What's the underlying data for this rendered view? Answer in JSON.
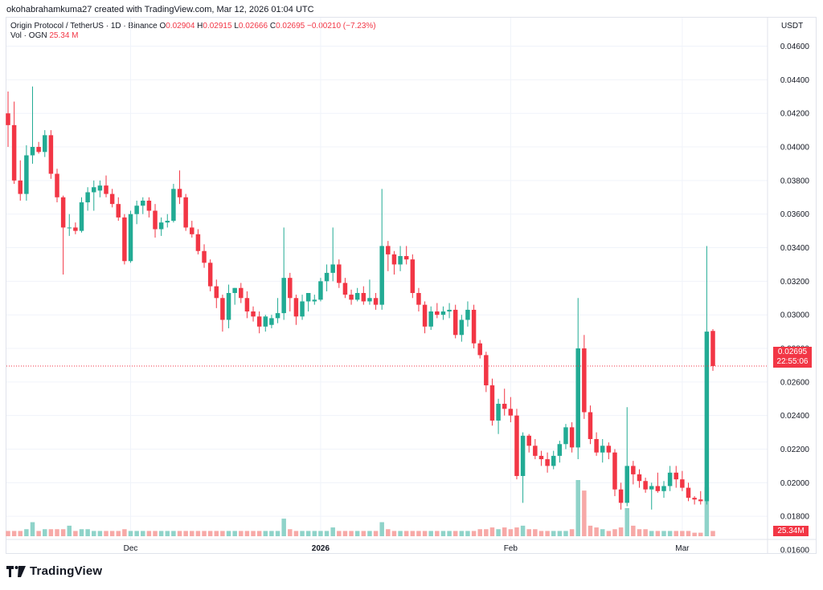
{
  "header": {
    "attribution": "okohabrahamkuma27 created with TradingView.com, Mar 12, 2026 01:04 UTC"
  },
  "legend": {
    "symbol": "Origin Protocol / TetherUS · 1D · Binance",
    "o_label": "O",
    "o_value": "0.02904",
    "h_label": "H",
    "h_value": "0.02915",
    "l_label": "L",
    "l_value": "0.02666",
    "c_label": "C",
    "c_value": "0.02695",
    "change": "−0.00210 (−7.23%)",
    "vol_label": "Vol · OGN",
    "vol_value": "25.34 M"
  },
  "axis": {
    "unit": "USDT",
    "y_ticks": [
      "0.04600",
      "0.04400",
      "0.04200",
      "0.04000",
      "0.03800",
      "0.03600",
      "0.03400",
      "0.03200",
      "0.03000",
      "0.02800",
      "0.02600",
      "0.02400",
      "0.02200",
      "0.02000",
      "0.01800",
      "0.01600"
    ],
    "x_ticks": [
      "Dec",
      "2026",
      "Feb",
      "Mar"
    ]
  },
  "last_price": {
    "price": "0.02695",
    "countdown": "22:55:06",
    "volume": "25.34M"
  },
  "brand": {
    "name": "TradingView"
  },
  "colors": {
    "up": "#22ab94",
    "down": "#f23645",
    "up_vol": "#8fd3c9",
    "down_vol": "#f7a9a7",
    "grid": "#f0f3fa"
  },
  "chart_data": {
    "type": "candlestick",
    "title": "Origin Protocol / TetherUS · 1D · Binance",
    "ylabel": "USDT",
    "ylim": [
      0.016,
      0.0466
    ],
    "grid": true,
    "x_ticks": [
      {
        "label": "Dec",
        "index": 20
      },
      {
        "label": "2026",
        "index": 51
      },
      {
        "label": "Feb",
        "index": 82
      },
      {
        "label": "Mar",
        "index": 110
      }
    ],
    "candles": [
      {
        "o": 0.042,
        "h": 0.0433,
        "l": 0.04,
        "c": 0.0413,
        "v": 3
      },
      {
        "o": 0.0413,
        "h": 0.0427,
        "l": 0.0378,
        "c": 0.038,
        "v": 3
      },
      {
        "o": 0.038,
        "h": 0.0392,
        "l": 0.0368,
        "c": 0.0372,
        "v": 3
      },
      {
        "o": 0.0372,
        "h": 0.0401,
        "l": 0.0368,
        "c": 0.0395,
        "v": 4
      },
      {
        "o": 0.0395,
        "h": 0.0436,
        "l": 0.039,
        "c": 0.04,
        "v": 8
      },
      {
        "o": 0.04,
        "h": 0.0403,
        "l": 0.0396,
        "c": 0.0397,
        "v": 3
      },
      {
        "o": 0.0397,
        "h": 0.041,
        "l": 0.0394,
        "c": 0.0407,
        "v": 4
      },
      {
        "o": 0.0407,
        "h": 0.041,
        "l": 0.0381,
        "c": 0.0384,
        "v": 4
      },
      {
        "o": 0.0384,
        "h": 0.0387,
        "l": 0.0367,
        "c": 0.037,
        "v": 4
      },
      {
        "o": 0.037,
        "h": 0.0371,
        "l": 0.0324,
        "c": 0.0352,
        "v": 4
      },
      {
        "o": 0.0352,
        "h": 0.036,
        "l": 0.0347,
        "c": 0.0352,
        "v": 6
      },
      {
        "o": 0.0352,
        "h": 0.0355,
        "l": 0.0348,
        "c": 0.035,
        "v": 3
      },
      {
        "o": 0.035,
        "h": 0.037,
        "l": 0.0349,
        "c": 0.0367,
        "v": 4
      },
      {
        "o": 0.0367,
        "h": 0.0376,
        "l": 0.0362,
        "c": 0.0373,
        "v": 4
      },
      {
        "o": 0.0373,
        "h": 0.038,
        "l": 0.0362,
        "c": 0.0376,
        "v": 3
      },
      {
        "o": 0.0374,
        "h": 0.038,
        "l": 0.037,
        "c": 0.0377,
        "v": 3
      },
      {
        "o": 0.0377,
        "h": 0.0383,
        "l": 0.037,
        "c": 0.0372,
        "v": 3
      },
      {
        "o": 0.0372,
        "h": 0.0375,
        "l": 0.0364,
        "c": 0.0366,
        "v": 3
      },
      {
        "o": 0.0366,
        "h": 0.037,
        "l": 0.0356,
        "c": 0.0358,
        "v": 3
      },
      {
        "o": 0.0358,
        "h": 0.036,
        "l": 0.033,
        "c": 0.0332,
        "v": 4
      },
      {
        "o": 0.0332,
        "h": 0.0362,
        "l": 0.0331,
        "c": 0.036,
        "v": 3
      },
      {
        "o": 0.036,
        "h": 0.0368,
        "l": 0.0354,
        "c": 0.0365,
        "v": 3
      },
      {
        "o": 0.0365,
        "h": 0.037,
        "l": 0.036,
        "c": 0.0368,
        "v": 3
      },
      {
        "o": 0.0368,
        "h": 0.037,
        "l": 0.0358,
        "c": 0.0362,
        "v": 3
      },
      {
        "o": 0.0362,
        "h": 0.0366,
        "l": 0.0346,
        "c": 0.0351,
        "v": 3
      },
      {
        "o": 0.0351,
        "h": 0.0358,
        "l": 0.0347,
        "c": 0.0355,
        "v": 3
      },
      {
        "o": 0.0355,
        "h": 0.036,
        "l": 0.0352,
        "c": 0.0356,
        "v": 3
      },
      {
        "o": 0.0356,
        "h": 0.0378,
        "l": 0.0355,
        "c": 0.0375,
        "v": 3
      },
      {
        "o": 0.0375,
        "h": 0.0386,
        "l": 0.0366,
        "c": 0.037,
        "v": 3
      },
      {
        "o": 0.037,
        "h": 0.0372,
        "l": 0.035,
        "c": 0.0352,
        "v": 3
      },
      {
        "o": 0.0352,
        "h": 0.0356,
        "l": 0.0346,
        "c": 0.0348,
        "v": 3
      },
      {
        "o": 0.0348,
        "h": 0.0351,
        "l": 0.0336,
        "c": 0.0338,
        "v": 3
      },
      {
        "o": 0.0338,
        "h": 0.0342,
        "l": 0.0328,
        "c": 0.0331,
        "v": 3
      },
      {
        "o": 0.0331,
        "h": 0.0333,
        "l": 0.0314,
        "c": 0.0317,
        "v": 3
      },
      {
        "o": 0.0317,
        "h": 0.0321,
        "l": 0.0304,
        "c": 0.031,
        "v": 3
      },
      {
        "o": 0.031,
        "h": 0.0312,
        "l": 0.029,
        "c": 0.0297,
        "v": 3
      },
      {
        "o": 0.0297,
        "h": 0.0318,
        "l": 0.0292,
        "c": 0.0313,
        "v": 3
      },
      {
        "o": 0.0313,
        "h": 0.0316,
        "l": 0.0306,
        "c": 0.0316,
        "v": 3
      },
      {
        "o": 0.0316,
        "h": 0.0319,
        "l": 0.0307,
        "c": 0.031,
        "v": 3
      },
      {
        "o": 0.031,
        "h": 0.0314,
        "l": 0.0298,
        "c": 0.0302,
        "v": 3
      },
      {
        "o": 0.0302,
        "h": 0.0305,
        "l": 0.0296,
        "c": 0.0299,
        "v": 3
      },
      {
        "o": 0.0299,
        "h": 0.0302,
        "l": 0.0289,
        "c": 0.0293,
        "v": 3
      },
      {
        "o": 0.0293,
        "h": 0.03,
        "l": 0.029,
        "c": 0.0299,
        "v": 3
      },
      {
        "o": 0.0294,
        "h": 0.03,
        "l": 0.0292,
        "c": 0.0298,
        "v": 3
      },
      {
        "o": 0.0298,
        "h": 0.031,
        "l": 0.0295,
        "c": 0.0301,
        "v": 3
      },
      {
        "o": 0.0301,
        "h": 0.0352,
        "l": 0.0297,
        "c": 0.0322,
        "v": 10
      },
      {
        "o": 0.0322,
        "h": 0.0325,
        "l": 0.0302,
        "c": 0.031,
        "v": 4
      },
      {
        "o": 0.031,
        "h": 0.0312,
        "l": 0.0294,
        "c": 0.0299,
        "v": 3
      },
      {
        "o": 0.0299,
        "h": 0.0312,
        "l": 0.0297,
        "c": 0.0308,
        "v": 3
      },
      {
        "o": 0.0308,
        "h": 0.0313,
        "l": 0.0302,
        "c": 0.0313,
        "v": 3
      },
      {
        "o": 0.0308,
        "h": 0.0312,
        "l": 0.0306,
        "c": 0.0309,
        "v": 3
      },
      {
        "o": 0.0309,
        "h": 0.0322,
        "l": 0.0308,
        "c": 0.032,
        "v": 3
      },
      {
        "o": 0.032,
        "h": 0.033,
        "l": 0.0314,
        "c": 0.0325,
        "v": 3
      },
      {
        "o": 0.0325,
        "h": 0.0352,
        "l": 0.032,
        "c": 0.033,
        "v": 5
      },
      {
        "o": 0.033,
        "h": 0.0333,
        "l": 0.0316,
        "c": 0.0319,
        "v": 3
      },
      {
        "o": 0.0319,
        "h": 0.0322,
        "l": 0.031,
        "c": 0.0312,
        "v": 3
      },
      {
        "o": 0.0312,
        "h": 0.0315,
        "l": 0.0306,
        "c": 0.0309,
        "v": 3
      },
      {
        "o": 0.0309,
        "h": 0.0316,
        "l": 0.0308,
        "c": 0.0313,
        "v": 3
      },
      {
        "o": 0.0313,
        "h": 0.0317,
        "l": 0.0306,
        "c": 0.0308,
        "v": 3
      },
      {
        "o": 0.0308,
        "h": 0.0321,
        "l": 0.0306,
        "c": 0.031,
        "v": 3
      },
      {
        "o": 0.031,
        "h": 0.0313,
        "l": 0.0303,
        "c": 0.0306,
        "v": 3
      },
      {
        "o": 0.0306,
        "h": 0.0375,
        "l": 0.0303,
        "c": 0.0341,
        "v": 8
      },
      {
        "o": 0.0341,
        "h": 0.0344,
        "l": 0.0326,
        "c": 0.0336,
        "v": 4
      },
      {
        "o": 0.0336,
        "h": 0.0338,
        "l": 0.0324,
        "c": 0.033,
        "v": 3
      },
      {
        "o": 0.033,
        "h": 0.0341,
        "l": 0.0326,
        "c": 0.0335,
        "v": 3
      },
      {
        "o": 0.0335,
        "h": 0.0341,
        "l": 0.033,
        "c": 0.0333,
        "v": 3
      },
      {
        "o": 0.0333,
        "h": 0.0336,
        "l": 0.031,
        "c": 0.0313,
        "v": 3
      },
      {
        "o": 0.0313,
        "h": 0.0316,
        "l": 0.0302,
        "c": 0.0306,
        "v": 3
      },
      {
        "o": 0.0306,
        "h": 0.0308,
        "l": 0.0289,
        "c": 0.0293,
        "v": 3
      },
      {
        "o": 0.0293,
        "h": 0.0305,
        "l": 0.0291,
        "c": 0.0302,
        "v": 3
      },
      {
        "o": 0.0302,
        "h": 0.0307,
        "l": 0.0298,
        "c": 0.03,
        "v": 3
      },
      {
        "o": 0.03,
        "h": 0.0305,
        "l": 0.0297,
        "c": 0.0302,
        "v": 3
      },
      {
        "o": 0.0302,
        "h": 0.0307,
        "l": 0.0298,
        "c": 0.0303,
        "v": 3
      },
      {
        "o": 0.0303,
        "h": 0.0306,
        "l": 0.0286,
        "c": 0.0288,
        "v": 3
      },
      {
        "o": 0.0288,
        "h": 0.03,
        "l": 0.0284,
        "c": 0.0297,
        "v": 3
      },
      {
        "o": 0.0297,
        "h": 0.0308,
        "l": 0.0293,
        "c": 0.0303,
        "v": 3
      },
      {
        "o": 0.0303,
        "h": 0.0306,
        "l": 0.028,
        "c": 0.0283,
        "v": 3
      },
      {
        "o": 0.0283,
        "h": 0.0285,
        "l": 0.0274,
        "c": 0.0276,
        "v": 4
      },
      {
        "o": 0.0276,
        "h": 0.0278,
        "l": 0.0254,
        "c": 0.0258,
        "v": 4
      },
      {
        "o": 0.0258,
        "h": 0.0262,
        "l": 0.0234,
        "c": 0.0237,
        "v": 5
      },
      {
        "o": 0.0237,
        "h": 0.025,
        "l": 0.0229,
        "c": 0.0247,
        "v": 4
      },
      {
        "o": 0.0247,
        "h": 0.0256,
        "l": 0.024,
        "c": 0.0244,
        "v": 5
      },
      {
        "o": 0.0244,
        "h": 0.0251,
        "l": 0.0236,
        "c": 0.024,
        "v": 4
      },
      {
        "o": 0.024,
        "h": 0.0244,
        "l": 0.0202,
        "c": 0.0204,
        "v": 5
      },
      {
        "o": 0.0204,
        "h": 0.023,
        "l": 0.0188,
        "c": 0.0228,
        "v": 6
      },
      {
        "o": 0.0228,
        "h": 0.0229,
        "l": 0.0218,
        "c": 0.0222,
        "v": 4
      },
      {
        "o": 0.0222,
        "h": 0.0226,
        "l": 0.0214,
        "c": 0.0216,
        "v": 4
      },
      {
        "o": 0.0216,
        "h": 0.0219,
        "l": 0.021,
        "c": 0.0214,
        "v": 3
      },
      {
        "o": 0.0214,
        "h": 0.0218,
        "l": 0.0206,
        "c": 0.021,
        "v": 3
      },
      {
        "o": 0.021,
        "h": 0.0219,
        "l": 0.0208,
        "c": 0.0216,
        "v": 3
      },
      {
        "o": 0.0216,
        "h": 0.0225,
        "l": 0.0212,
        "c": 0.0223,
        "v": 3
      },
      {
        "o": 0.0223,
        "h": 0.0235,
        "l": 0.022,
        "c": 0.0233,
        "v": 3
      },
      {
        "o": 0.0233,
        "h": 0.0236,
        "l": 0.0218,
        "c": 0.0221,
        "v": 4
      },
      {
        "o": 0.0221,
        "h": 0.031,
        "l": 0.0214,
        "c": 0.028,
        "v": 32
      },
      {
        "o": 0.028,
        "h": 0.0288,
        "l": 0.0238,
        "c": 0.0242,
        "v": 26
      },
      {
        "o": 0.0242,
        "h": 0.0246,
        "l": 0.0223,
        "c": 0.0226,
        "v": 6
      },
      {
        "o": 0.0226,
        "h": 0.023,
        "l": 0.0216,
        "c": 0.0218,
        "v": 5
      },
      {
        "o": 0.0218,
        "h": 0.0226,
        "l": 0.0212,
        "c": 0.0222,
        "v": 4
      },
      {
        "o": 0.0222,
        "h": 0.0224,
        "l": 0.0214,
        "c": 0.0218,
        "v": 3
      },
      {
        "o": 0.0218,
        "h": 0.022,
        "l": 0.0192,
        "c": 0.0196,
        "v": 4
      },
      {
        "o": 0.0196,
        "h": 0.02,
        "l": 0.0184,
        "c": 0.0188,
        "v": 5
      },
      {
        "o": 0.0188,
        "h": 0.0245,
        "l": 0.0186,
        "c": 0.021,
        "v": 16
      },
      {
        "o": 0.021,
        "h": 0.0213,
        "l": 0.0199,
        "c": 0.0205,
        "v": 6
      },
      {
        "o": 0.0205,
        "h": 0.0208,
        "l": 0.0197,
        "c": 0.0201,
        "v": 4
      },
      {
        "o": 0.0201,
        "h": 0.0203,
        "l": 0.0194,
        "c": 0.0196,
        "v": 4
      },
      {
        "o": 0.0196,
        "h": 0.02,
        "l": 0.0184,
        "c": 0.0198,
        "v": 3
      },
      {
        "o": 0.0198,
        "h": 0.0206,
        "l": 0.0194,
        "c": 0.0195,
        "v": 3
      },
      {
        "o": 0.0195,
        "h": 0.0201,
        "l": 0.0191,
        "c": 0.0198,
        "v": 3
      },
      {
        "o": 0.0198,
        "h": 0.021,
        "l": 0.0195,
        "c": 0.0206,
        "v": 3
      },
      {
        "o": 0.0206,
        "h": 0.021,
        "l": 0.0197,
        "c": 0.0202,
        "v": 3
      },
      {
        "o": 0.0202,
        "h": 0.0207,
        "l": 0.0195,
        "c": 0.0197,
        "v": 3
      },
      {
        "o": 0.0197,
        "h": 0.02,
        "l": 0.0189,
        "c": 0.0191,
        "v": 3
      },
      {
        "o": 0.0191,
        "h": 0.0192,
        "l": 0.0187,
        "c": 0.019,
        "v": 2
      },
      {
        "o": 0.019,
        "h": 0.0195,
        "l": 0.0187,
        "c": 0.0189,
        "v": 2
      },
      {
        "o": 0.0189,
        "h": 0.0341,
        "l": 0.0187,
        "c": 0.029,
        "v": 28
      },
      {
        "o": 0.02904,
        "h": 0.02915,
        "l": 0.02666,
        "c": 0.02695,
        "v": 3
      }
    ]
  }
}
